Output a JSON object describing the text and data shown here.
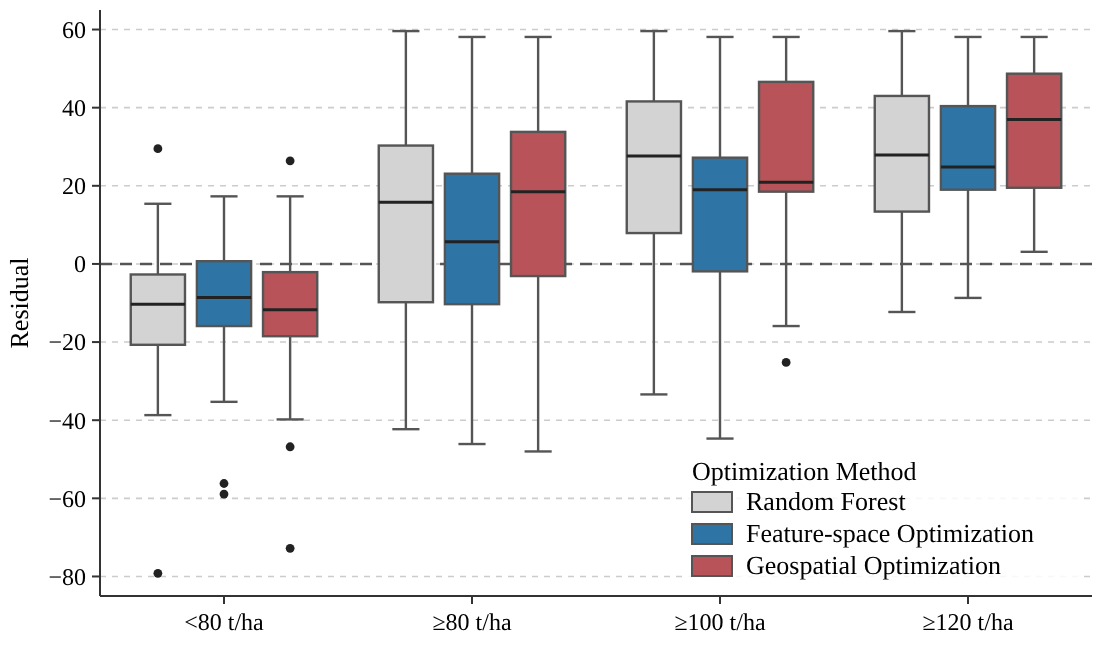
{
  "chart_data": {
    "type": "box",
    "ylabel": "Residual",
    "legend_title": "Optimization Method",
    "categories": [
      "<80 t/ha",
      "≥80 t/ha",
      "≥100 t/ha",
      "≥120 t/ha"
    ],
    "ylim": [
      -85,
      65
    ],
    "yticks": [
      -80,
      -60,
      -40,
      -20,
      0,
      20,
      40,
      60
    ],
    "grid": "y",
    "legend": "bottom right",
    "ref_lines": [
      {
        "axis": "y",
        "value": 0,
        "color": "#555555",
        "line_style": "dashed"
      }
    ],
    "series": [
      {
        "name": "Random Forest",
        "color": "#d3d3d3",
        "boxes": [
          {
            "low": -38.7,
            "q1": -20.7,
            "median": -10.3,
            "q3": -2.7,
            "high": 15.4,
            "outliers": [
              29.5,
              -79.2
            ]
          },
          {
            "low": -42.3,
            "q1": -9.8,
            "median": 15.8,
            "q3": 30.3,
            "high": 59.6
          },
          {
            "low": -33.4,
            "q1": 7.9,
            "median": 27.6,
            "q3": 41.6,
            "high": 59.6
          },
          {
            "low": -12.3,
            "q1": 13.4,
            "median": 27.9,
            "q3": 43,
            "high": 59.6
          }
        ]
      },
      {
        "name": "Feature-space Optimization",
        "color": "#2e75a6",
        "boxes": [
          {
            "low": -35.3,
            "q1": -15.9,
            "median": -8.6,
            "q3": 0.7,
            "high": 17.3,
            "outliers": [
              -56.2,
              -58.9
            ]
          },
          {
            "low": -46.1,
            "q1": -10.3,
            "median": 5.7,
            "q3": 23.1,
            "high": 58.1
          },
          {
            "low": -44.7,
            "q1": -1.9,
            "median": 19,
            "q3": 27.2,
            "high": 58.1
          },
          {
            "low": -8.7,
            "q1": 19,
            "median": 24.8,
            "q3": 40.4,
            "high": 58.1
          }
        ]
      },
      {
        "name": "Geospatial Optimization",
        "color": "#b85459",
        "boxes": [
          {
            "low": -39.8,
            "q1": -18.5,
            "median": -11.7,
            "q3": -2.1,
            "high": 17.3,
            "outliers": [
              26.4,
              -46.8,
              -72.8
            ]
          },
          {
            "low": -48,
            "q1": -3.1,
            "median": 18.5,
            "q3": 33.8,
            "high": 58.1
          },
          {
            "low": -15.9,
            "q1": 18.5,
            "median": 20.9,
            "q3": 46.6,
            "high": 58.1,
            "outliers": [
              -25.2
            ]
          },
          {
            "low": 3.1,
            "q1": 19.5,
            "median": 37,
            "q3": 48.7,
            "high": 58.1
          }
        ]
      }
    ]
  }
}
